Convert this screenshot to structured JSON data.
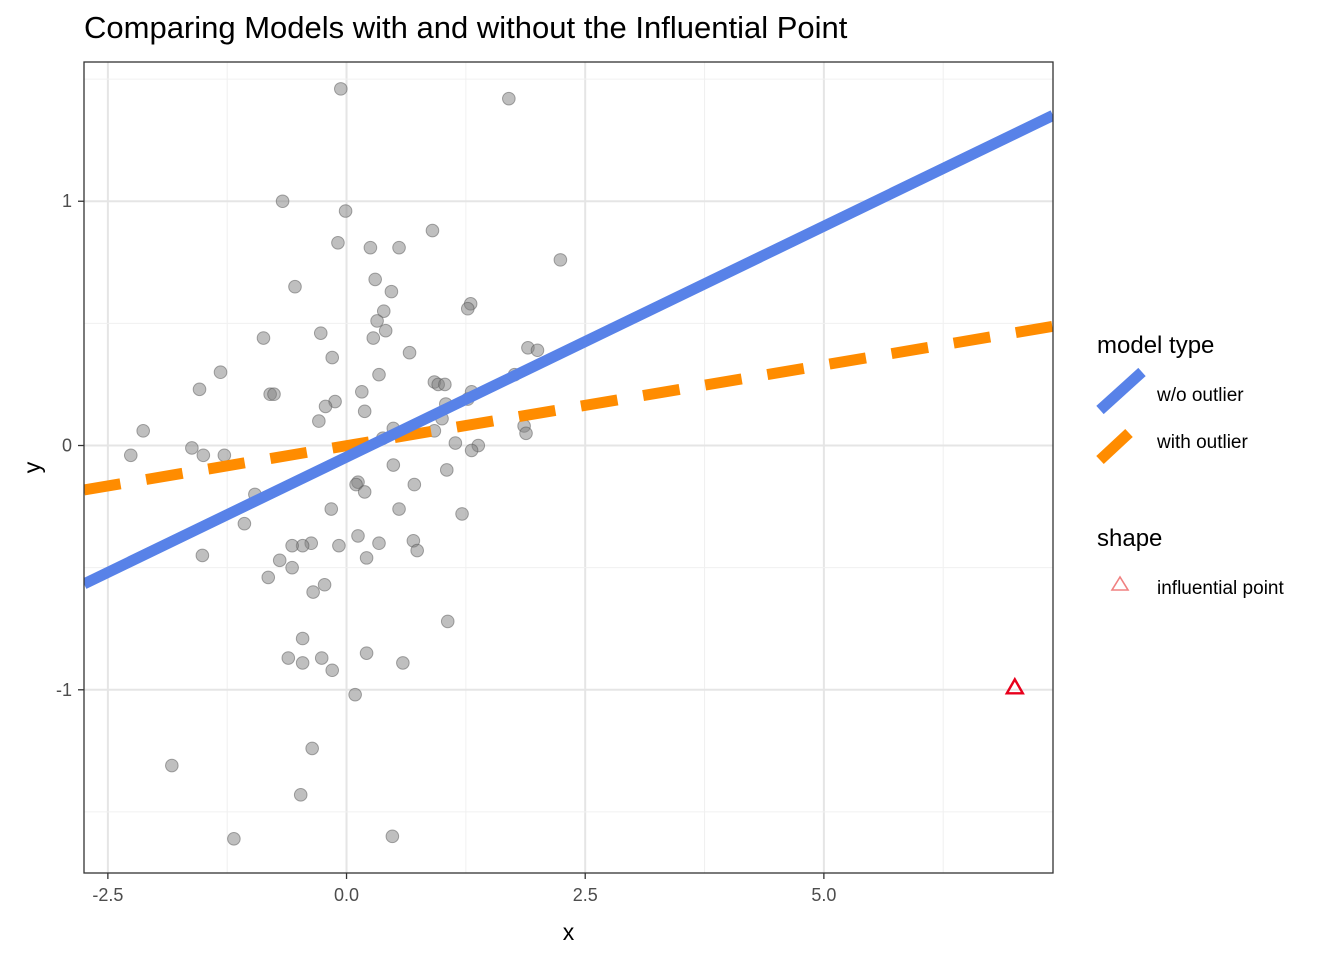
{
  "chart_data": {
    "type": "scatter",
    "title": "Comparing Models with and without the Influential Point",
    "xlabel": "x",
    "ylabel": "y",
    "xlim": [
      -2.75,
      7.4
    ],
    "ylim": [
      -1.75,
      1.57
    ],
    "x_ticks": [
      -2.5,
      0,
      2.5,
      5
    ],
    "x_tick_labels": [
      "-2.5",
      "0.0",
      "2.5",
      "5.0"
    ],
    "y_ticks": [
      -1,
      0,
      1
    ],
    "y_tick_labels": [
      "-1",
      "0",
      "1"
    ],
    "grid": true,
    "legend_position": "right",
    "points": [
      {
        "x": -0.06,
        "y": 1.46
      },
      {
        "x": 1.7,
        "y": 1.42
      },
      {
        "x": -0.67,
        "y": 1.0
      },
      {
        "x": -0.01,
        "y": 0.96
      },
      {
        "x": 0.9,
        "y": 0.88
      },
      {
        "x": -0.09,
        "y": 0.83
      },
      {
        "x": 0.25,
        "y": 0.81
      },
      {
        "x": 0.55,
        "y": 0.81
      },
      {
        "x": 2.24,
        "y": 0.76
      },
      {
        "x": 0.3,
        "y": 0.68
      },
      {
        "x": -0.54,
        "y": 0.65
      },
      {
        "x": 0.47,
        "y": 0.63
      },
      {
        "x": 1.3,
        "y": 0.58
      },
      {
        "x": 1.27,
        "y": 0.56
      },
      {
        "x": 0.39,
        "y": 0.55
      },
      {
        "x": 0.32,
        "y": 0.51
      },
      {
        "x": 0.41,
        "y": 0.47
      },
      {
        "x": -0.27,
        "y": 0.46
      },
      {
        "x": 0.28,
        "y": 0.44
      },
      {
        "x": -0.87,
        "y": 0.44
      },
      {
        "x": 1.9,
        "y": 0.4
      },
      {
        "x": 2.0,
        "y": 0.39
      },
      {
        "x": 0.66,
        "y": 0.38
      },
      {
        "x": -0.15,
        "y": 0.36
      },
      {
        "x": -1.32,
        "y": 0.3
      },
      {
        "x": 0.34,
        "y": 0.29
      },
      {
        "x": 1.76,
        "y": 0.29
      },
      {
        "x": 0.92,
        "y": 0.26
      },
      {
        "x": 0.96,
        "y": 0.25
      },
      {
        "x": 1.03,
        "y": 0.25
      },
      {
        "x": -1.54,
        "y": 0.23
      },
      {
        "x": 1.31,
        "y": 0.22
      },
      {
        "x": 0.16,
        "y": 0.22
      },
      {
        "x": -0.8,
        "y": 0.21
      },
      {
        "x": -0.76,
        "y": 0.21
      },
      {
        "x": 1.27,
        "y": 0.19
      },
      {
        "x": -0.12,
        "y": 0.18
      },
      {
        "x": 1.04,
        "y": 0.17
      },
      {
        "x": -0.22,
        "y": 0.16
      },
      {
        "x": 0.19,
        "y": 0.14
      },
      {
        "x": 1.0,
        "y": 0.11
      },
      {
        "x": -0.29,
        "y": 0.1
      },
      {
        "x": 1.86,
        "y": 0.08
      },
      {
        "x": 0.49,
        "y": 0.07
      },
      {
        "x": -2.13,
        "y": 0.06
      },
      {
        "x": 0.92,
        "y": 0.06
      },
      {
        "x": 1.88,
        "y": 0.05
      },
      {
        "x": 0.38,
        "y": 0.03
      },
      {
        "x": 1.14,
        "y": 0.01
      },
      {
        "x": 1.38,
        "y": 0.0
      },
      {
        "x": 0.17,
        "y": 0.0
      },
      {
        "x": -1.62,
        "y": -0.01
      },
      {
        "x": 1.31,
        "y": -0.02
      },
      {
        "x": -2.26,
        "y": -0.04
      },
      {
        "x": -1.5,
        "y": -0.04
      },
      {
        "x": -1.28,
        "y": -0.04
      },
      {
        "x": 0.49,
        "y": -0.08
      },
      {
        "x": 1.05,
        "y": -0.1
      },
      {
        "x": 0.12,
        "y": -0.15
      },
      {
        "x": 0.1,
        "y": -0.16
      },
      {
        "x": 0.71,
        "y": -0.16
      },
      {
        "x": 0.19,
        "y": -0.19
      },
      {
        "x": -0.96,
        "y": -0.2
      },
      {
        "x": -0.16,
        "y": -0.26
      },
      {
        "x": 0.55,
        "y": -0.26
      },
      {
        "x": 1.21,
        "y": -0.28
      },
      {
        "x": -1.07,
        "y": -0.32
      },
      {
        "x": 0.12,
        "y": -0.37
      },
      {
        "x": 0.7,
        "y": -0.39
      },
      {
        "x": 0.34,
        "y": -0.4
      },
      {
        "x": -0.37,
        "y": -0.4
      },
      {
        "x": -0.46,
        "y": -0.41
      },
      {
        "x": -0.08,
        "y": -0.41
      },
      {
        "x": -0.57,
        "y": -0.41
      },
      {
        "x": 0.74,
        "y": -0.43
      },
      {
        "x": -1.51,
        "y": -0.45
      },
      {
        "x": 0.21,
        "y": -0.46
      },
      {
        "x": -0.7,
        "y": -0.47
      },
      {
        "x": -0.57,
        "y": -0.5
      },
      {
        "x": -0.82,
        "y": -0.54
      },
      {
        "x": -0.23,
        "y": -0.57
      },
      {
        "x": -0.35,
        "y": -0.6
      },
      {
        "x": 1.06,
        "y": -0.72
      },
      {
        "x": -0.46,
        "y": -0.79
      },
      {
        "x": 0.21,
        "y": -0.85
      },
      {
        "x": -0.61,
        "y": -0.87
      },
      {
        "x": -0.26,
        "y": -0.87
      },
      {
        "x": -0.46,
        "y": -0.89
      },
      {
        "x": 0.59,
        "y": -0.89
      },
      {
        "x": -0.15,
        "y": -0.92
      },
      {
        "x": 0.09,
        "y": -1.02
      },
      {
        "x": -0.36,
        "y": -1.24
      },
      {
        "x": -1.83,
        "y": -1.31
      },
      {
        "x": -0.48,
        "y": -1.43
      },
      {
        "x": -1.18,
        "y": -1.61
      },
      {
        "x": 0.48,
        "y": -1.6
      }
    ],
    "influential_point": {
      "x": 7.0,
      "y": -0.99
    },
    "lines": [
      {
        "name": "w/o outlier",
        "intercept": -0.047,
        "slope": 0.189,
        "color": "#5882e8",
        "style": "solid"
      },
      {
        "name": "with outlier",
        "intercept": -0.0006,
        "slope": 0.066,
        "color": "#ff8c00",
        "style": "dashed"
      }
    ],
    "point_color": "#808080",
    "influential_color": "#e8001c",
    "legend": {
      "model_title": "model type",
      "model_items": [
        "w/o outlier",
        "with outlier"
      ],
      "shape_title": "shape",
      "shape_items": [
        "influential point"
      ]
    }
  }
}
